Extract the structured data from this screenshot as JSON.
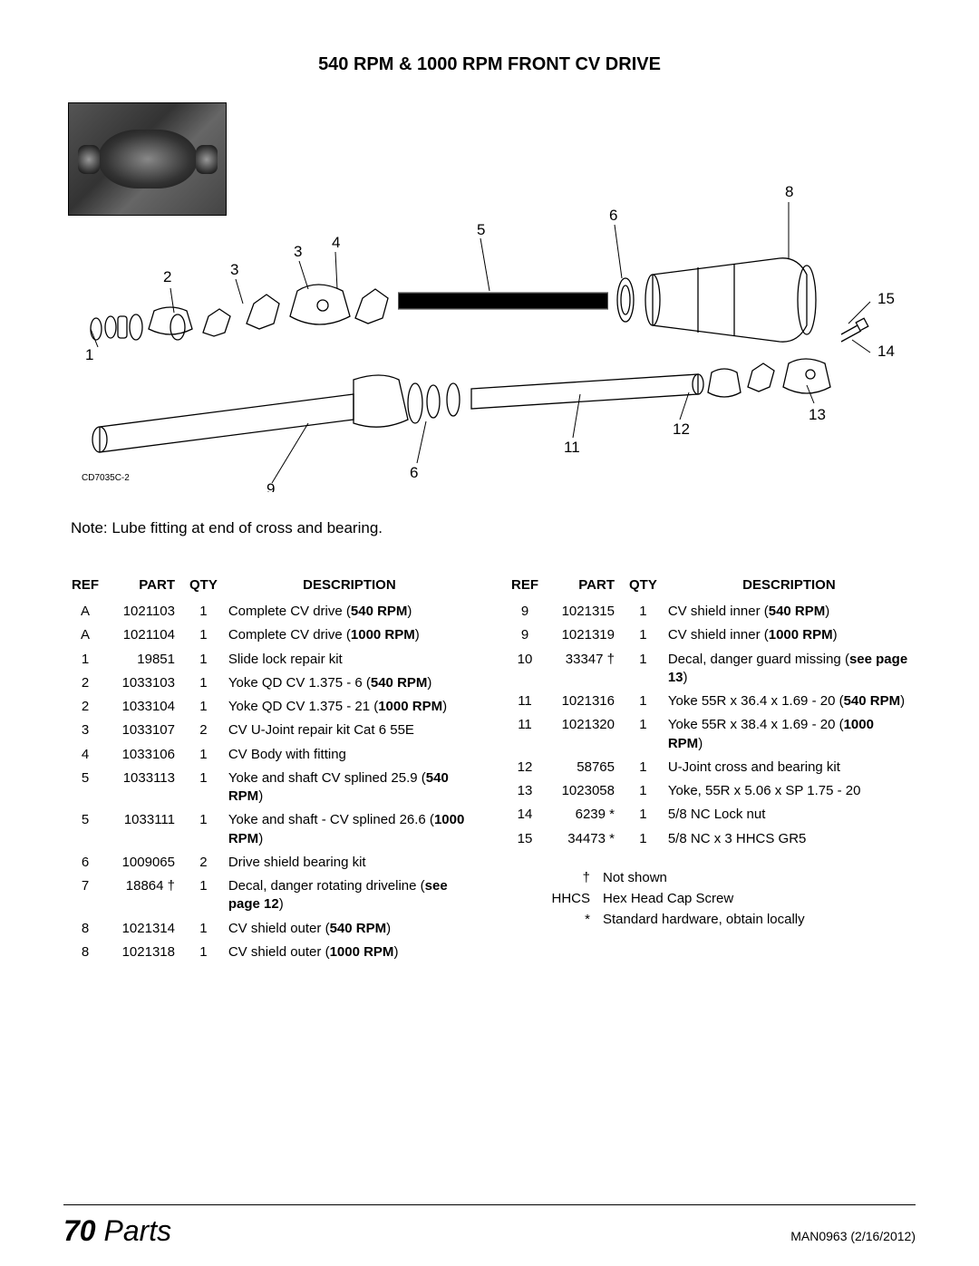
{
  "title": "540 RPM & 1000 RPM FRONT CV DRIVE",
  "diagram_code": "CD7035C-2",
  "note": "Note:  Lube fitting at end of cross and bearing.",
  "headers": {
    "ref": "REF",
    "part": "PART",
    "qty": "QTY",
    "desc": "DESCRIPTION"
  },
  "callouts": [
    "1",
    "2",
    "3",
    "3",
    "4",
    "5",
    "6",
    "6",
    "8",
    "9",
    "11",
    "12",
    "13",
    "14",
    "15"
  ],
  "left_rows": [
    {
      "ref": "A",
      "part": "1021103",
      "qty": "1",
      "desc": "Complete CV drive (",
      "b": "540 RPM",
      "tail": ")"
    },
    {
      "ref": "A",
      "part": "1021104",
      "qty": "1",
      "desc": "Complete CV drive (",
      "b": "1000 RPM",
      "tail": ")"
    },
    {
      "ref": "1",
      "part": "19851",
      "qty": "1",
      "desc": "Slide lock repair kit"
    },
    {
      "ref": "2",
      "part": "1033103",
      "qty": "1",
      "desc": "Yoke QD CV 1.375 - 6 (",
      "b": "540 RPM",
      "tail": ")"
    },
    {
      "ref": "2",
      "part": "1033104",
      "qty": "1",
      "desc": "Yoke QD CV 1.375 - 21 (",
      "b": "1000 RPM",
      "tail": ")"
    },
    {
      "ref": "3",
      "part": "1033107",
      "qty": "2",
      "desc": "CV U-Joint repair kit Cat 6 55E"
    },
    {
      "ref": "4",
      "part": "1033106",
      "qty": "1",
      "desc": "CV Body with fitting"
    },
    {
      "ref": "5",
      "part": "1033113",
      "qty": "1",
      "desc": "Yoke and shaft CV splined 25.9 (",
      "b": "540 RPM",
      "tail": ")"
    },
    {
      "ref": "5",
      "part": "1033111",
      "qty": "1",
      "desc": "Yoke and shaft - CV splined 26.6 (",
      "b": "1000 RPM",
      "tail": ")"
    },
    {
      "ref": "6",
      "part": "1009065",
      "qty": "2",
      "desc": "Drive shield bearing kit"
    },
    {
      "ref": "7",
      "part": "18864 †",
      "qty": "1",
      "desc": "Decal, danger rotating driveline (",
      "b": "see page 12",
      "tail": ")"
    },
    {
      "ref": "8",
      "part": "1021314",
      "qty": "1",
      "desc": "CV shield outer (",
      "b": "540 RPM",
      "tail": ")"
    },
    {
      "ref": "8",
      "part": "1021318",
      "qty": "1",
      "desc": "CV shield outer (",
      "b": "1000 RPM",
      "tail": ")"
    }
  ],
  "right_rows": [
    {
      "ref": "9",
      "part": "1021315",
      "qty": "1",
      "desc": "CV shield inner (",
      "b": "540 RPM",
      "tail": ")"
    },
    {
      "ref": "9",
      "part": "1021319",
      "qty": "1",
      "desc": "CV shield inner (",
      "b": "1000 RPM",
      "tail": ")"
    },
    {
      "ref": "10",
      "part": "33347 †",
      "qty": "1",
      "desc": "Decal, danger guard missing (",
      "b": "see page 13",
      "tail": ")"
    },
    {
      "ref": "11",
      "part": "1021316",
      "qty": "1",
      "desc": "Yoke 55R x 36.4 x 1.69 - 20 (",
      "b": "540 RPM",
      "tail": ")"
    },
    {
      "ref": "11",
      "part": "1021320",
      "qty": "1",
      "desc": "Yoke 55R x 38.4 x 1.69 - 20 (",
      "b": "1000 RPM",
      "tail": ")"
    },
    {
      "ref": "12",
      "part": "58765",
      "qty": "1",
      "desc": "U-Joint cross and bearing kit"
    },
    {
      "ref": "13",
      "part": "1023058",
      "qty": "1",
      "desc": "Yoke, 55R x 5.06 x SP 1.75 - 20"
    },
    {
      "ref": "14",
      "part": "6239 *",
      "qty": "1",
      "desc": "5/8 NC Lock nut"
    },
    {
      "ref": "15",
      "part": "34473 *",
      "qty": "1",
      "desc": "5/8 NC x 3 HHCS GR5"
    }
  ],
  "legend": [
    {
      "sym": "†",
      "text": "Not shown"
    },
    {
      "sym": "HHCS",
      "text": "Hex Head Cap Screw"
    },
    {
      "sym": "*",
      "text": "Standard hardware, obtain locally"
    }
  ],
  "footer": {
    "page_num": "70",
    "section": "Parts",
    "doc": "MAN0963 (2/16/2012)"
  }
}
